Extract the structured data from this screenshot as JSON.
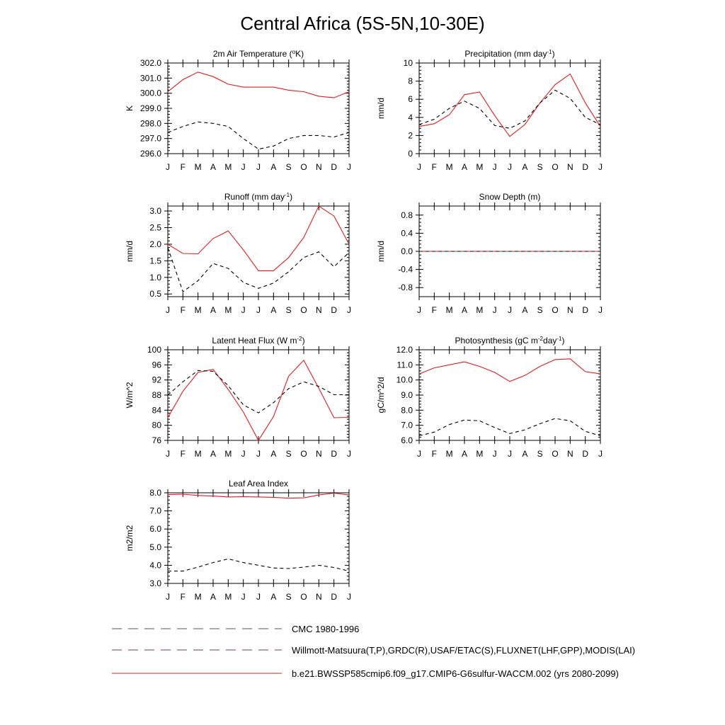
{
  "page": {
    "title": "Central Africa (5S-5N,10-30E)"
  },
  "colors": {
    "model": "#e41a1c",
    "obs": "#000000"
  },
  "months": [
    "J",
    "F",
    "M",
    "A",
    "M",
    "J",
    "J",
    "A",
    "S",
    "O",
    "N",
    "D",
    "J"
  ],
  "chart_data": [
    {
      "type": "line",
      "title": "2m Air Temperature (",
      "title_sup": "o",
      "title_tail": "K)",
      "ylabel": "K",
      "ylim": [
        296.0,
        302.0
      ],
      "yticks": [
        "296.0",
        "297.0",
        "298.0",
        "299.0",
        "300.0",
        "301.0",
        "302.0"
      ],
      "series": [
        {
          "style": "solid",
          "values": [
            300.1,
            300.9,
            301.4,
            301.1,
            300.6,
            300.4,
            300.4,
            300.4,
            300.2,
            300.1,
            299.8,
            299.7,
            300.1
          ]
        },
        {
          "style": "dashed",
          "values": [
            297.4,
            297.8,
            298.1,
            298.0,
            297.8,
            297.0,
            296.3,
            296.5,
            297.0,
            297.2,
            297.2,
            297.1,
            297.4
          ]
        }
      ]
    },
    {
      "type": "line",
      "title": "Precipitation (mm day",
      "title_sup": "-1",
      "title_tail": ")",
      "ylabel": "mm/d",
      "ylim": [
        0,
        10
      ],
      "yticks": [
        "0",
        "2",
        "4",
        "6",
        "8",
        "10"
      ],
      "series": [
        {
          "style": "solid",
          "values": [
            3.0,
            3.3,
            4.3,
            6.5,
            6.8,
            4.2,
            1.9,
            3.2,
            5.6,
            7.6,
            8.8,
            5.6,
            3.0
          ]
        },
        {
          "style": "dashed",
          "values": [
            3.2,
            3.8,
            5.0,
            5.8,
            5.0,
            3.1,
            2.8,
            3.6,
            5.6,
            7.0,
            6.1,
            4.0,
            3.2
          ]
        }
      ]
    },
    {
      "type": "line",
      "title": "Runoff (mm day",
      "title_sup": "-1",
      "title_tail": ")",
      "ylabel": "mm/d",
      "ylim": [
        0.42,
        3.15
      ],
      "yticks": [
        "0.5",
        "1.0",
        "1.5",
        "2.0",
        "2.5",
        "3.0"
      ],
      "ytick_values": [
        0.5,
        1.0,
        1.5,
        2.0,
        2.5,
        3.0
      ],
      "series": [
        {
          "style": "solid",
          "values": [
            2.0,
            1.72,
            1.71,
            2.17,
            2.4,
            1.83,
            1.2,
            1.2,
            1.6,
            2.2,
            3.15,
            2.85,
            2.0
          ]
        },
        {
          "style": "dashed",
          "values": [
            1.9,
            0.57,
            0.9,
            1.42,
            1.27,
            0.85,
            0.67,
            0.83,
            1.17,
            1.6,
            1.77,
            1.32,
            1.75
          ]
        }
      ]
    },
    {
      "type": "line",
      "title": "Snow Depth (m)",
      "title_sup": "",
      "title_tail": "",
      "ylabel": "mm/d",
      "ylim": [
        -1.0,
        1.0
      ],
      "yticks": [
        "-0.8",
        "-0.4",
        "0.0",
        "0.4",
        "0.8"
      ],
      "ytick_values": [
        -0.8,
        -0.4,
        0.0,
        0.4,
        0.8
      ],
      "series": [
        {
          "style": "solid",
          "values": [
            0,
            0,
            0,
            0,
            0,
            0,
            0,
            0,
            0,
            0,
            0,
            0,
            0
          ]
        },
        {
          "style": "dashed",
          "values": [
            0,
            0,
            0,
            0,
            0,
            0,
            0,
            0,
            0,
            0,
            0,
            0,
            0
          ]
        }
      ]
    },
    {
      "type": "line",
      "title": "Latent Heat Flux (W m",
      "title_sup": "-2",
      "title_tail": ")",
      "ylabel": "W/m^2",
      "ylim": [
        76,
        100
      ],
      "yticks": [
        "76",
        "80",
        "84",
        "88",
        "92",
        "96",
        "100"
      ],
      "series": [
        {
          "style": "solid",
          "values": [
            82.0,
            89.0,
            94.0,
            94.8,
            89.5,
            83.5,
            76.0,
            82.3,
            93.0,
            97.2,
            89.8,
            82.0,
            82.1
          ]
        },
        {
          "style": "dashed",
          "values": [
            88.0,
            91.5,
            94.5,
            94.3,
            90.5,
            85.4,
            83.3,
            86.0,
            89.7,
            91.5,
            90.3,
            88.1,
            88.1
          ]
        }
      ]
    },
    {
      "type": "line",
      "title": "Photosynthesis (gC m",
      "title_sup": "-2",
      "title_tail": "day",
      "title_sup2": "-1",
      "title_tail2": ")",
      "ylabel": "gC/m^2/d",
      "ylim": [
        6.0,
        12.0
      ],
      "yticks": [
        "6.0",
        "7.0",
        "8.0",
        "9.0",
        "10.0",
        "11.0",
        "12.0"
      ],
      "series": [
        {
          "style": "solid",
          "values": [
            10.4,
            10.8,
            11.0,
            11.2,
            10.9,
            10.5,
            9.9,
            10.3,
            10.9,
            11.35,
            11.4,
            10.55,
            10.4
          ]
        },
        {
          "style": "dashed",
          "values": [
            6.3,
            6.55,
            7.05,
            7.35,
            7.3,
            6.85,
            6.45,
            6.7,
            7.1,
            7.45,
            7.3,
            6.6,
            6.3
          ]
        }
      ]
    },
    {
      "type": "line",
      "title": "Leaf Area Index",
      "title_sup": "",
      "title_tail": "",
      "ylabel": "m2/m2",
      "ylim": [
        3.0,
        8.0
      ],
      "yticks": [
        "3.0",
        "4.0",
        "5.0",
        "6.0",
        "7.0",
        "8.0"
      ],
      "series": [
        {
          "style": "solid",
          "values": [
            7.9,
            7.92,
            7.85,
            7.82,
            7.77,
            7.78,
            7.77,
            7.75,
            7.7,
            7.72,
            7.88,
            7.98,
            7.88
          ]
        },
        {
          "style": "dashed",
          "values": [
            3.68,
            3.68,
            3.9,
            4.15,
            4.35,
            4.15,
            4.0,
            3.85,
            3.82,
            3.9,
            4.0,
            3.88,
            3.68
          ]
        }
      ]
    }
  ],
  "legend": [
    {
      "label": "CMC 1980-1996",
      "style": "dashed-grey"
    },
    {
      "label": "Willmott-Matsuura(T,P),GRDC(R),USAF/ETAC(S),FLUXNET(LHF,GPP),MODIS(LAI)",
      "style": "dashed-colored"
    },
    {
      "label": "b.e21.BWSSP585cmip6.f09_g17.CMIP6-G6sulfur-WACCM.002 (yrs 2080-2099)",
      "style": "solid-red"
    }
  ]
}
